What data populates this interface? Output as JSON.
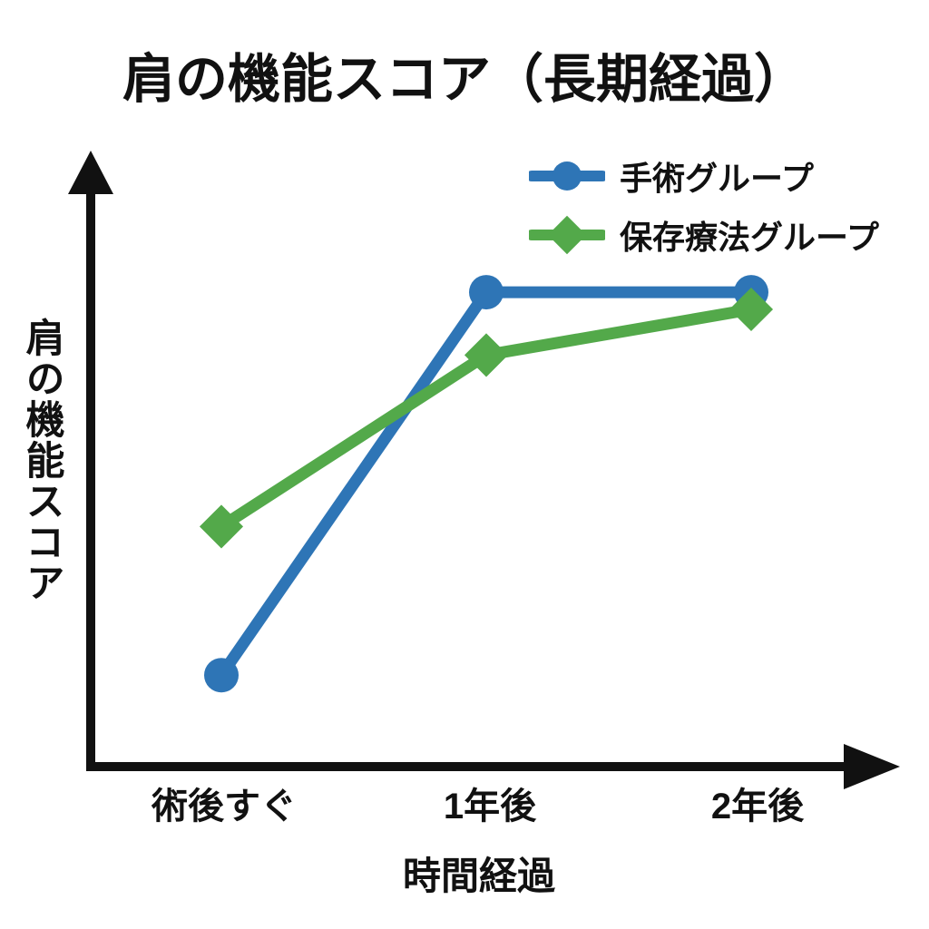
{
  "page": {
    "background": "#ffffff",
    "text_color": "#111111"
  },
  "title": "肩の機能スコア（長期経過）",
  "chart_data": {
    "type": "line",
    "title": "肩の機能スコア（長期経過）",
    "xlabel": "時間経過",
    "ylabel": "肩の機能スコア",
    "categories": [
      "術後すぐ",
      "1年後",
      "2年後"
    ],
    "series": [
      {
        "name": "手術グループ",
        "color": "#2E75B6",
        "marker": "circle",
        "values": [
          16,
          83,
          83
        ]
      },
      {
        "name": "保存療法グループ",
        "color": "#53A94A",
        "marker": "diamond",
        "values": [
          42,
          72,
          80
        ]
      }
    ],
    "values_are_estimates": true,
    "ylim": [
      0,
      100
    ],
    "grid": false,
    "axis_ticks_numeric": false,
    "axis_arrows": true,
    "axis_color": "#111111",
    "legend_position": "top-right"
  }
}
